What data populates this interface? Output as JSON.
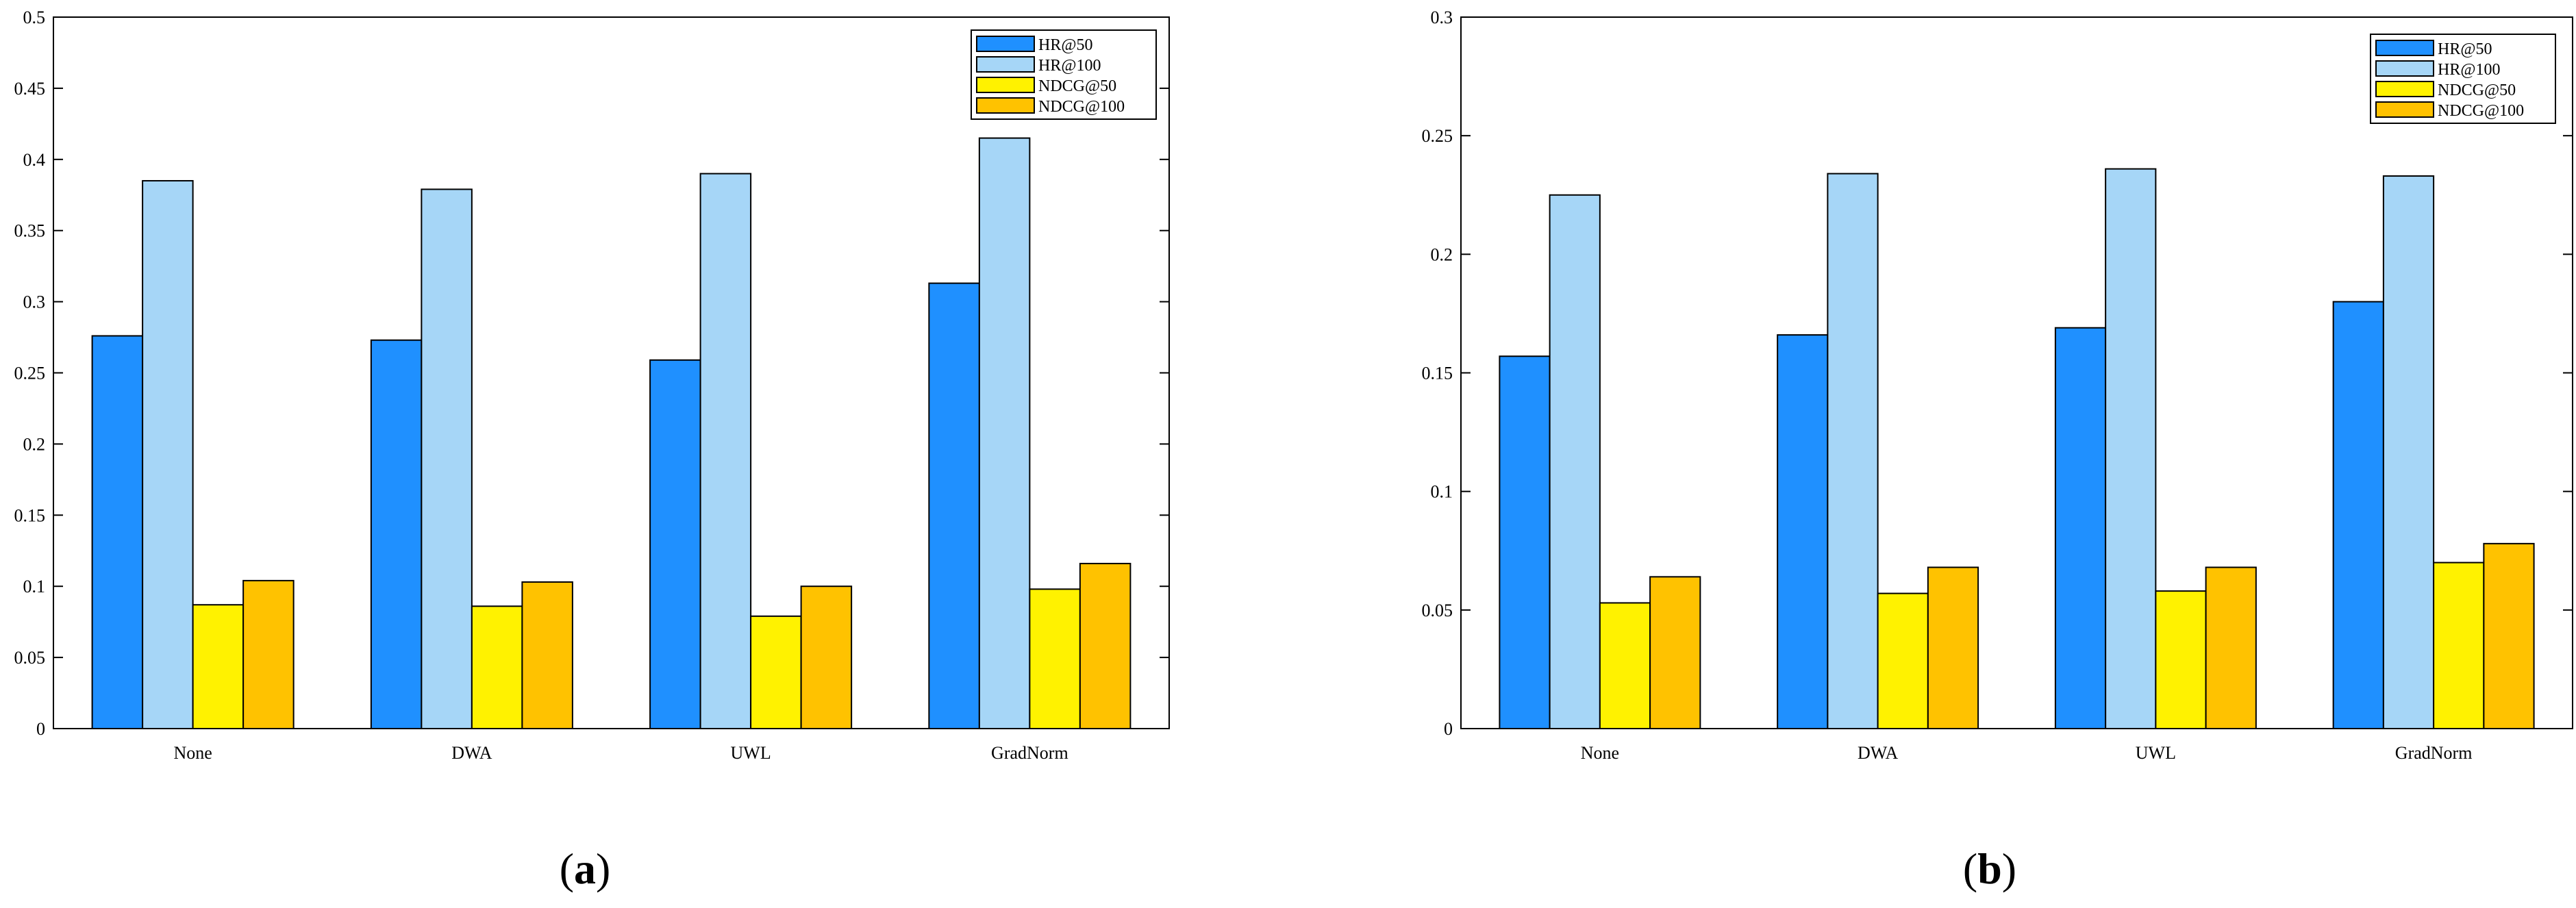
{
  "colors": {
    "hr50": "#1f90ff",
    "hr100": "#a6d6f7",
    "ndcg50": "#fff200",
    "ndcg100": "#ffc200",
    "axis": "#000000"
  },
  "chart_data": [
    {
      "type": "bar",
      "panel_label": "a",
      "title": "",
      "xlabel": "",
      "ylabel": "",
      "categories": [
        "None",
        "DWA",
        "UWL",
        "GradNorm"
      ],
      "ylim": [
        0,
        0.5
      ],
      "yticks": [
        0,
        0.05,
        0.1,
        0.15,
        0.2,
        0.25,
        0.3,
        0.35,
        0.4,
        0.45,
        0.5
      ],
      "ytick_labels": [
        "0",
        "0.05",
        "0.1",
        "0.15",
        "0.2",
        "0.25",
        "0.3",
        "0.35",
        "0.4",
        "0.45",
        "0.5"
      ],
      "legend_position": "top-right",
      "series": [
        {
          "name": "HR@50",
          "color_key": "hr50",
          "values": [
            0.276,
            0.273,
            0.259,
            0.313
          ]
        },
        {
          "name": "HR@100",
          "color_key": "hr100",
          "values": [
            0.385,
            0.379,
            0.39,
            0.415
          ]
        },
        {
          "name": "NDCG@50",
          "color_key": "ndcg50",
          "values": [
            0.087,
            0.086,
            0.079,
            0.098
          ]
        },
        {
          "name": "NDCG@100",
          "color_key": "ndcg100",
          "values": [
            0.104,
            0.103,
            0.1,
            0.116
          ]
        }
      ]
    },
    {
      "type": "bar",
      "panel_label": "b",
      "title": "",
      "xlabel": "",
      "ylabel": "",
      "categories": [
        "None",
        "DWA",
        "UWL",
        "GradNorm"
      ],
      "ylim": [
        0,
        0.3
      ],
      "yticks": [
        0,
        0.05,
        0.1,
        0.15,
        0.2,
        0.25,
        0.3
      ],
      "ytick_labels": [
        "0",
        "0.05",
        "0.1",
        "0.15",
        "0.2",
        "0.25",
        "0.3"
      ],
      "legend_position": "top-right",
      "series": [
        {
          "name": "HR@50",
          "color_key": "hr50",
          "values": [
            0.157,
            0.166,
            0.169,
            0.18
          ]
        },
        {
          "name": "HR@100",
          "color_key": "hr100",
          "values": [
            0.225,
            0.234,
            0.236,
            0.233
          ]
        },
        {
          "name": "NDCG@50",
          "color_key": "ndcg50",
          "values": [
            0.053,
            0.057,
            0.058,
            0.07
          ]
        },
        {
          "name": "NDCG@100",
          "color_key": "ndcg100",
          "values": [
            0.064,
            0.068,
            0.068,
            0.078
          ]
        }
      ]
    }
  ]
}
